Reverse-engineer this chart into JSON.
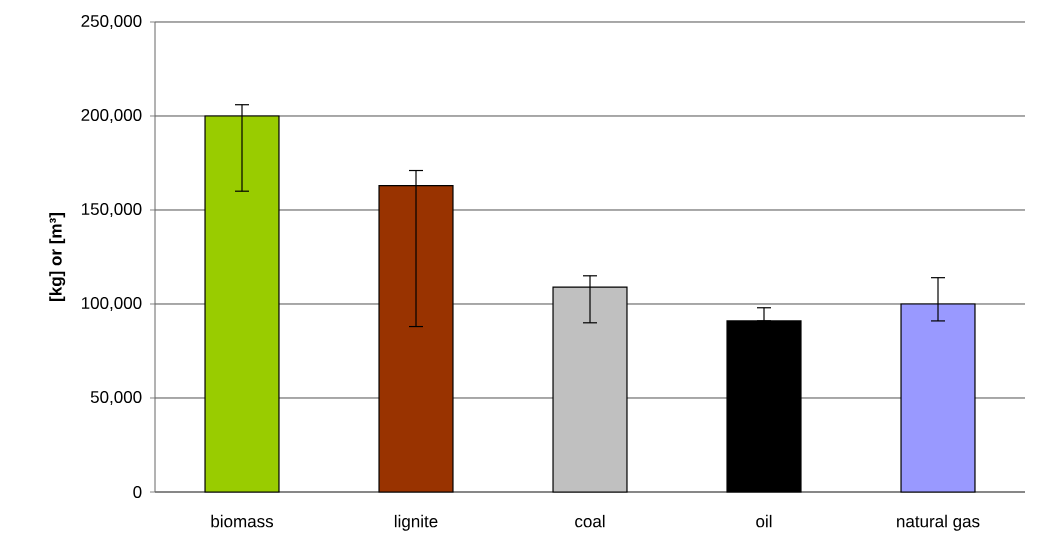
{
  "chart_data": {
    "type": "bar",
    "ylabel": "[kg] or [m³]",
    "categories": [
      "biomass",
      "lignite",
      "coal",
      "oil",
      "natural gas"
    ],
    "values": [
      200000,
      163000,
      109000,
      91000,
      100000
    ],
    "colors": [
      "#99cc00",
      "#993300",
      "#c0c0c0",
      "#000000",
      "#9999ff"
    ],
    "errors": [
      [
        160000,
        206000
      ],
      [
        88000,
        171000
      ],
      [
        90000,
        115000
      ],
      [
        91000,
        98000
      ],
      [
        91000,
        114000
      ]
    ],
    "ylim": [
      0,
      250000
    ],
    "yticks": [
      {
        "value": 0,
        "label": "0"
      },
      {
        "value": 50000,
        "label": "50,000"
      },
      {
        "value": 100000,
        "label": "100,000"
      },
      {
        "value": 150000,
        "label": "150,000"
      },
      {
        "value": 200000,
        "label": "200,000"
      },
      {
        "value": 250000,
        "label": "250,000"
      }
    ],
    "grid": "y"
  }
}
